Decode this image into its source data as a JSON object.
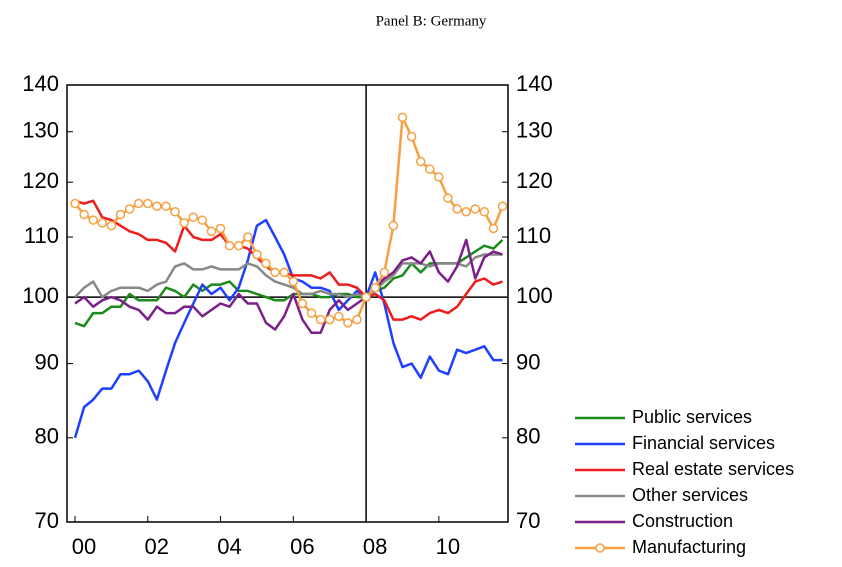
{
  "chart_data": {
    "type": "line",
    "title": "Panel B: Germany",
    "x": [
      2000,
      2000.25,
      2000.5,
      2000.75,
      2001,
      2001.25,
      2001.5,
      2001.75,
      2002,
      2002.25,
      2002.5,
      2002.75,
      2003,
      2003.25,
      2003.5,
      2003.75,
      2004,
      2004.25,
      2004.5,
      2004.75,
      2005,
      2005.25,
      2005.5,
      2005.75,
      2006,
      2006.25,
      2006.5,
      2006.75,
      2007,
      2007.25,
      2007.5,
      2007.75,
      2008,
      2008.25,
      2008.5,
      2008.75,
      2009,
      2009.25,
      2009.5,
      2009.75,
      2010,
      2010.25,
      2010.5,
      2010.75,
      2011,
      2011.25,
      2011.5,
      2011.75
    ],
    "xlim": [
      1999.78,
      2011.9
    ],
    "xticks": [
      {
        "value": 2000,
        "label": "00"
      },
      {
        "value": 2002,
        "label": "02"
      },
      {
        "value": 2004,
        "label": "04"
      },
      {
        "value": 2006,
        "label": "06"
      },
      {
        "value": 2008,
        "label": "08"
      },
      {
        "value": 2010,
        "label": "10"
      }
    ],
    "ylim": [
      70,
      140
    ],
    "yticks": [
      70,
      80,
      90,
      100,
      110,
      120,
      130,
      140
    ],
    "y_scale": "log",
    "hline": 100,
    "vline": 2008,
    "series": [
      {
        "name": "Public services",
        "color": "#1a8a1a",
        "values": [
          96,
          95.5,
          97.5,
          97.5,
          98.5,
          98.5,
          100.5,
          99.5,
          99.5,
          99.5,
          101.5,
          101,
          100,
          102,
          101,
          102,
          102,
          102.5,
          101,
          101,
          100.5,
          100,
          99.5,
          99.5,
          100.5,
          100.5,
          100.5,
          100,
          100,
          100.5,
          100.5,
          100,
          100,
          101,
          101.5,
          103,
          103.5,
          105.5,
          104,
          105.5,
          105.5,
          105.5,
          105.5,
          106.5,
          107.5,
          108.5,
          108,
          109.5
        ]
      },
      {
        "name": "Financial services",
        "color": "#1f3fff",
        "values": [
          80,
          84,
          85,
          86.5,
          86.5,
          88.5,
          88.5,
          89,
          87.5,
          85,
          89,
          93,
          96,
          99,
          102,
          100.5,
          101.5,
          99.5,
          101.5,
          106,
          112,
          113,
          110,
          107,
          103,
          102.5,
          101.5,
          101.5,
          101,
          98,
          99.5,
          101,
          100,
          104,
          99,
          93,
          89.5,
          90,
          88,
          91,
          89,
          88.5,
          92,
          91.5,
          92,
          92.5,
          90.5,
          90.5
        ]
      },
      {
        "name": "Real estate services",
        "color": "#ee1c1c",
        "values": [
          116.5,
          116,
          116.5,
          113.5,
          113,
          112,
          111,
          110.5,
          109.5,
          109.5,
          109,
          107.5,
          112,
          110,
          109.5,
          109.5,
          110.5,
          108.5,
          108.5,
          108,
          106.5,
          105,
          104,
          104,
          103.5,
          103.5,
          103.5,
          103,
          104,
          102,
          102,
          101.5,
          100,
          100.5,
          99.5,
          96.5,
          96.5,
          97,
          96.5,
          97.5,
          98,
          97.5,
          98.5,
          100.5,
          102.5,
          103,
          102,
          102.5
        ]
      },
      {
        "name": "Other services",
        "color": "#888888",
        "values": [
          100,
          101.5,
          102.5,
          100,
          101,
          101.5,
          101.5,
          101.5,
          101,
          102,
          102.5,
          105,
          105.5,
          104.5,
          104.5,
          105,
          104.5,
          104.5,
          104.5,
          105.5,
          105,
          103.5,
          102.5,
          102,
          101.5,
          100.5,
          100.5,
          101,
          100.5,
          100.5,
          100,
          100.5,
          100,
          101,
          102.5,
          103.5,
          105.5,
          105.5,
          105.5,
          105,
          105.5,
          105.5,
          105.5,
          105,
          106.5,
          107,
          107,
          107
        ]
      },
      {
        "name": "Construction",
        "color": "#7b1f8a",
        "values": [
          99,
          100,
          98.5,
          99.5,
          100,
          99.5,
          98.5,
          98,
          96.5,
          98.5,
          97.5,
          97.5,
          98.5,
          98.5,
          97,
          98,
          99,
          98.5,
          100.5,
          99,
          99,
          96,
          95,
          97,
          100.5,
          96.5,
          94.5,
          94.5,
          98,
          99.5,
          98,
          99,
          100,
          101.5,
          103,
          104,
          106,
          106.5,
          105.5,
          107.5,
          104,
          102.5,
          105,
          109.5,
          103,
          106.5,
          107.5,
          107
        ]
      },
      {
        "name": "Manufacturing",
        "color": "#f7a041",
        "marker": "circle",
        "values": [
          116,
          114,
          113,
          112.5,
          112,
          114,
          115,
          116,
          116,
          115.5,
          115.5,
          114.5,
          112.5,
          113.5,
          113,
          111,
          111.5,
          108.5,
          108.5,
          110,
          107,
          105.5,
          104,
          104,
          102.5,
          99,
          97.5,
          96.5,
          96.5,
          97,
          96,
          96.5,
          100,
          101.5,
          104,
          112,
          133,
          129,
          124,
          122.5,
          121,
          117,
          115,
          114.5,
          115,
          114.5,
          111.5,
          115.5
        ]
      }
    ]
  }
}
